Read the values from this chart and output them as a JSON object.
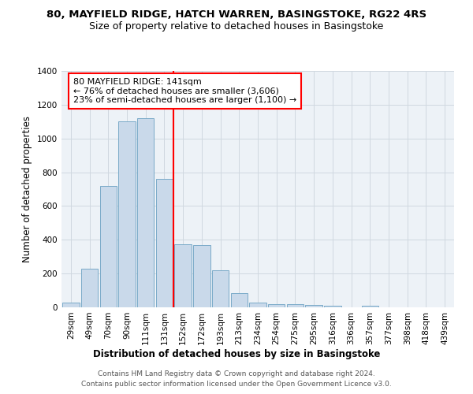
{
  "title_line1": "80, MAYFIELD RIDGE, HATCH WARREN, BASINGSTOKE, RG22 4RS",
  "title_line2": "Size of property relative to detached houses in Basingstoke",
  "xlabel": "Distribution of detached houses by size in Basingstoke",
  "ylabel": "Number of detached properties",
  "categories": [
    "29sqm",
    "49sqm",
    "70sqm",
    "90sqm",
    "111sqm",
    "131sqm",
    "152sqm",
    "172sqm",
    "193sqm",
    "213sqm",
    "234sqm",
    "254sqm",
    "275sqm",
    "295sqm",
    "316sqm",
    "336sqm",
    "357sqm",
    "377sqm",
    "398sqm",
    "418sqm",
    "439sqm"
  ],
  "values": [
    28,
    230,
    720,
    1100,
    1120,
    760,
    375,
    370,
    220,
    85,
    28,
    20,
    18,
    15,
    10,
    0,
    10,
    0,
    0,
    0,
    0
  ],
  "bar_color": "#c9d9ea",
  "bar_edge_color": "#7aaac8",
  "vline_x": 5.5,
  "vline_color": "red",
  "annotation_text": "80 MAYFIELD RIDGE: 141sqm\n← 76% of detached houses are smaller (3,606)\n23% of semi-detached houses are larger (1,100) →",
  "annotation_box_color": "white",
  "annotation_box_edge": "red",
  "ylim": [
    0,
    1400
  ],
  "yticks": [
    0,
    200,
    400,
    600,
    800,
    1000,
    1200,
    1400
  ],
  "grid_color": "#d0d8e0",
  "background_color": "#edf2f7",
  "footer_line1": "Contains HM Land Registry data © Crown copyright and database right 2024.",
  "footer_line2": "Contains public sector information licensed under the Open Government Licence v3.0.",
  "title_fontsize": 9.5,
  "subtitle_fontsize": 9,
  "axis_label_fontsize": 8.5,
  "tick_fontsize": 7.5,
  "annotation_fontsize": 8,
  "footer_fontsize": 6.5
}
